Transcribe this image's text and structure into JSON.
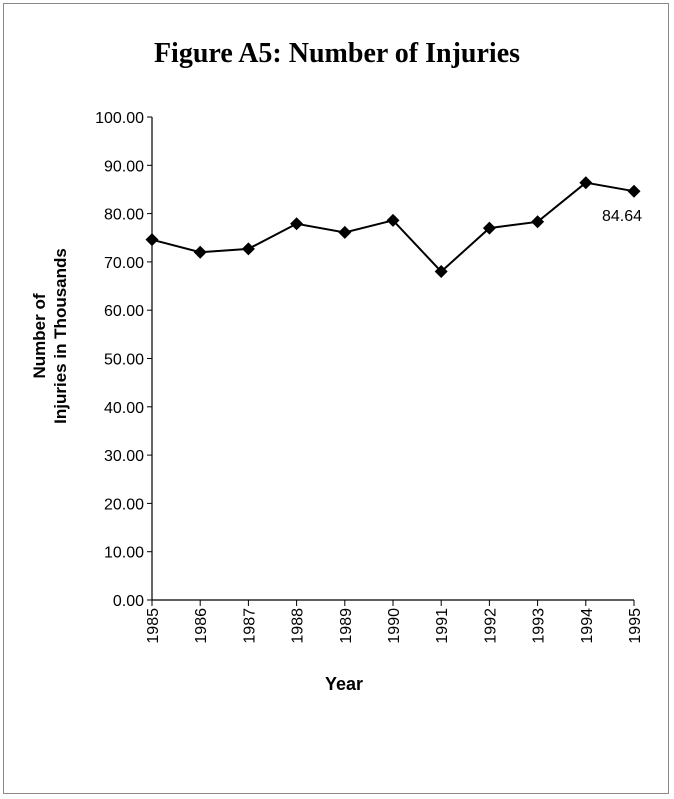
{
  "chart_data": {
    "type": "line",
    "title": "Figure A5: Number of Injuries",
    "xlabel": "Year",
    "ylabel_lines": [
      "Number of",
      "Injuries in Thousands"
    ],
    "categories": [
      "1985",
      "1986",
      "1987",
      "1988",
      "1989",
      "1990",
      "1991",
      "1992",
      "1993",
      "1994",
      "1995"
    ],
    "series": [
      {
        "values": [
          74.6,
          72.0,
          72.7,
          77.9,
          76.1,
          78.6,
          68.0,
          77.0,
          78.3,
          86.4,
          84.64
        ]
      }
    ],
    "yticks": [
      "0.00",
      "10.00",
      "20.00",
      "30.00",
      "40.00",
      "50.00",
      "60.00",
      "70.00",
      "80.00",
      "90.00",
      "100.00"
    ],
    "ylim": [
      0,
      100
    ],
    "data_labels": [
      {
        "index": 10,
        "text": "84.64"
      }
    ],
    "marker": "diamond",
    "grid": false,
    "legend": "none",
    "line_color": "#000000"
  }
}
